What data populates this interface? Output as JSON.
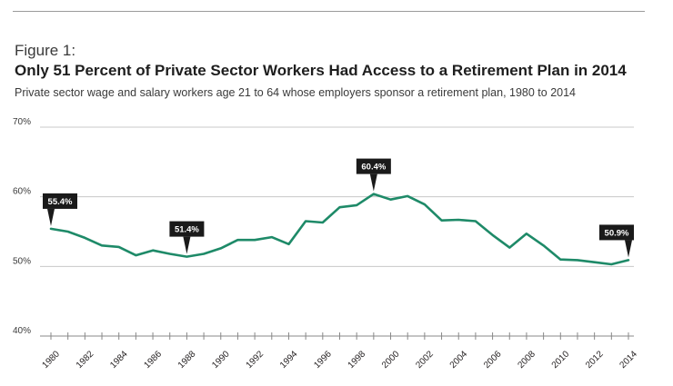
{
  "header": {
    "figure_label": "Figure 1:",
    "title": "Only 51 Percent of Private Sector Workers Had Access to a Retirement Plan in 2014",
    "subtitle": "Private sector wage and salary workers age 21 to 64 whose employers sponsor a retirement plan, 1980 to 2014"
  },
  "colors": {
    "line": "#1e8a68",
    "callout": "#1a1a1a",
    "grid": "#c8c8c8",
    "axis": "#888888"
  },
  "chart_data": {
    "type": "line",
    "title": "Only 51 Percent of Private Sector Workers Had Access to a Retirement Plan in 2014",
    "subtitle": "Private sector wage and salary workers age 21 to 64 whose employers sponsor a retirement plan, 1980 to 2014",
    "xlabel": "",
    "ylabel": "",
    "xlim": [
      1980,
      2014
    ],
    "ylim": [
      40,
      70
    ],
    "yticks": [
      "40%",
      "50%",
      "60%",
      "70%"
    ],
    "ytick_values": [
      40,
      50,
      60,
      70
    ],
    "xticks": [
      "1980",
      "1982",
      "1984",
      "1986",
      "1988",
      "1990",
      "1992",
      "1994",
      "1996",
      "1998",
      "2000",
      "2002",
      "2004",
      "2006",
      "2008",
      "2010",
      "2012",
      "2014"
    ],
    "xtick_values": [
      1980,
      1982,
      1984,
      1986,
      1988,
      1990,
      1992,
      1994,
      1996,
      1998,
      2000,
      2002,
      2004,
      2006,
      2008,
      2010,
      2012,
      2014
    ],
    "grid": "horizontal",
    "series": [
      {
        "x": [
          1980,
          1981,
          1982,
          1983,
          1984,
          1985,
          1986,
          1987,
          1988,
          1989,
          1990,
          1991,
          1992,
          1993,
          1994,
          1995,
          1996,
          1997,
          1998,
          1999,
          2000,
          2001,
          2002,
          2003,
          2004,
          2005,
          2006,
          2007,
          2008,
          2009,
          2010,
          2011,
          2012,
          2013,
          2014
        ],
        "values": [
          55.4,
          55.0,
          54.1,
          53.0,
          52.8,
          51.6,
          52.3,
          51.8,
          51.4,
          51.8,
          52.6,
          53.8,
          53.8,
          54.2,
          53.2,
          56.5,
          56.3,
          58.5,
          58.8,
          60.4,
          59.6,
          60.1,
          58.9,
          56.6,
          56.7,
          56.5,
          54.5,
          52.7,
          54.7,
          53.0,
          51.0,
          50.9,
          50.6,
          50.3,
          50.9
        ]
      }
    ],
    "annotations": [
      {
        "x": 1980,
        "y": 55.4,
        "text": "55.4%"
      },
      {
        "x": 1988,
        "y": 51.4,
        "text": "51.4%"
      },
      {
        "x": 1999,
        "y": 60.4,
        "text": "60.4%"
      },
      {
        "x": 2014,
        "y": 50.9,
        "text": "50.9%"
      }
    ]
  }
}
